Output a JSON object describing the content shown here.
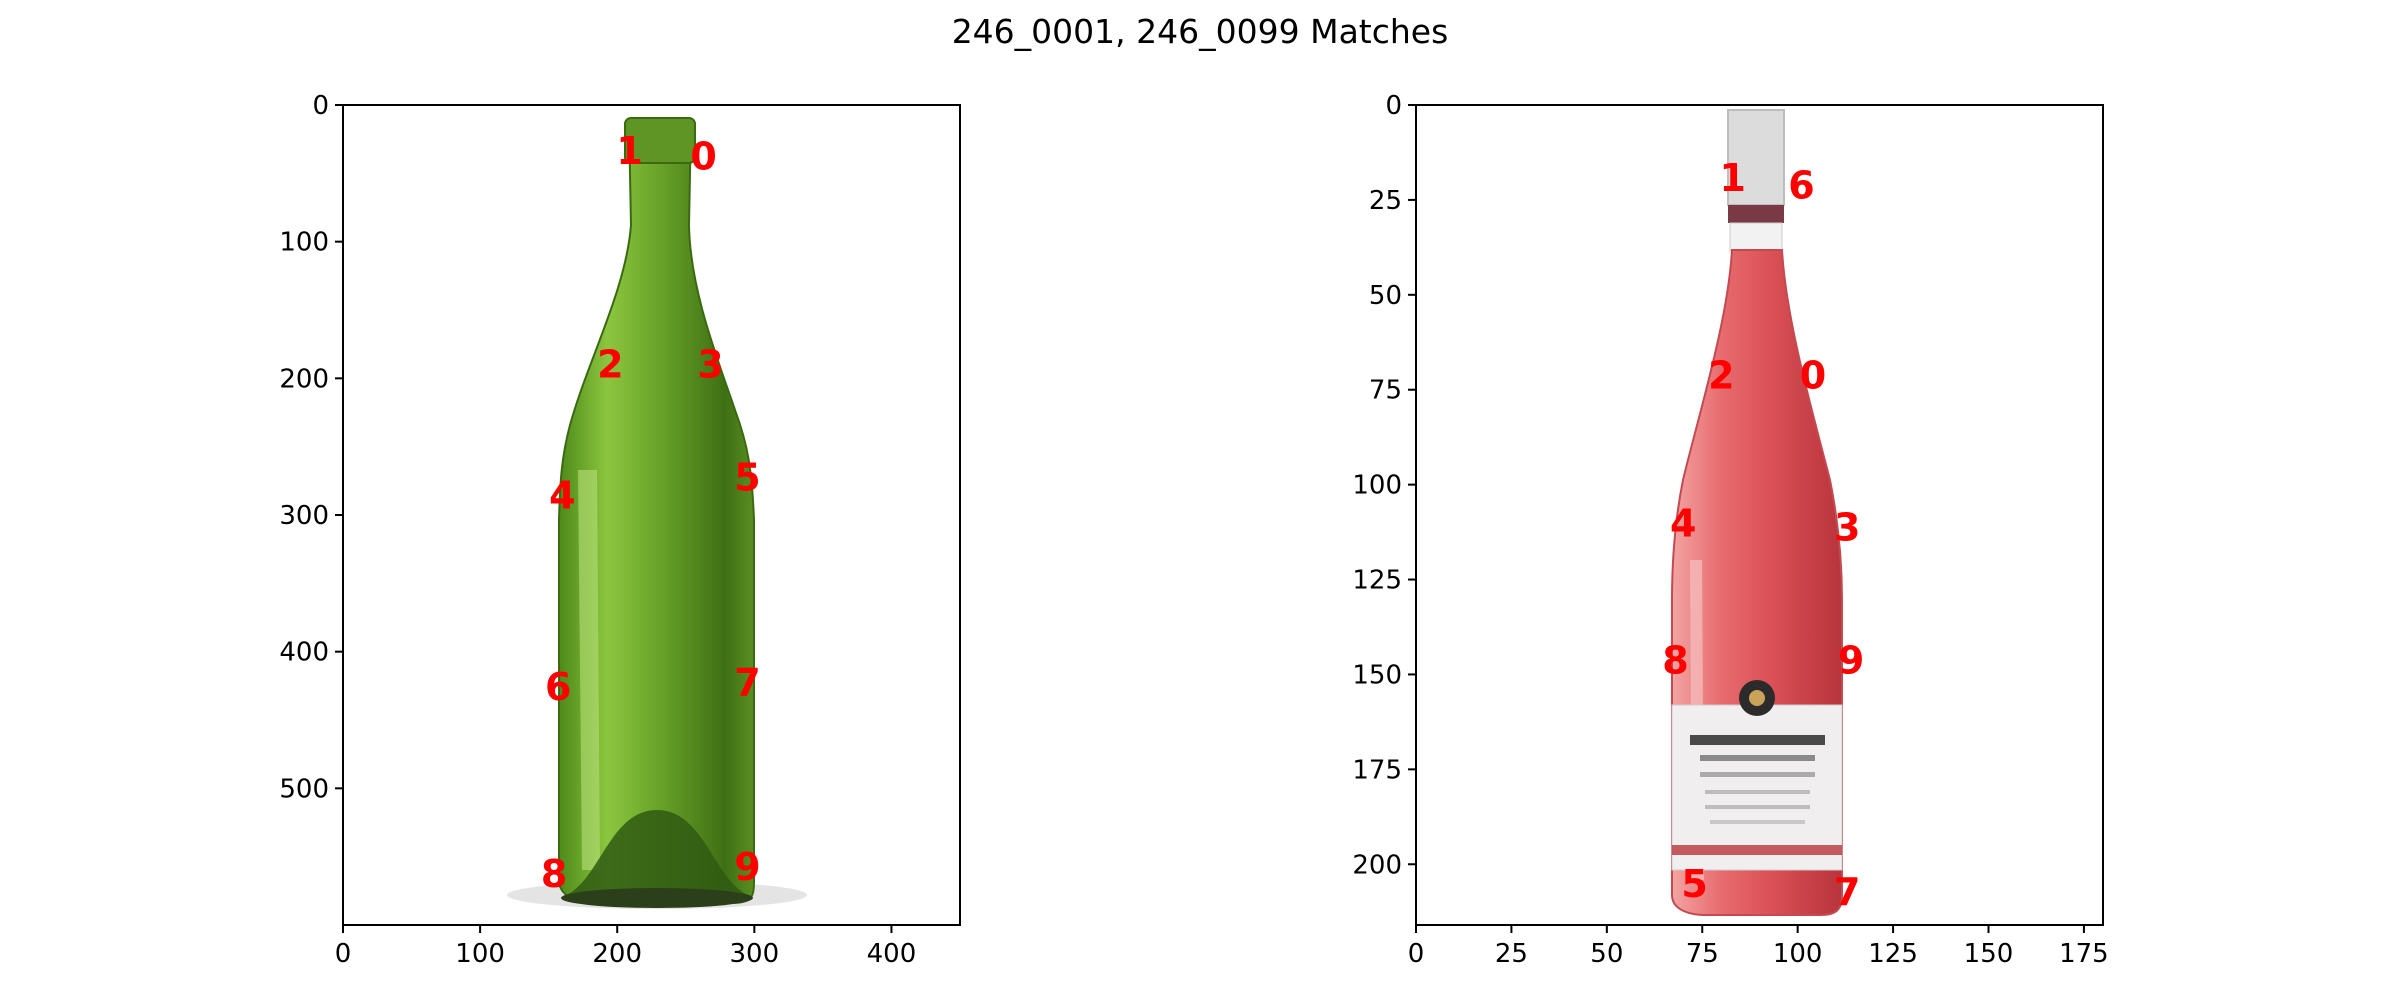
{
  "title": "246_0001, 246_0099 Matches",
  "colors": {
    "keypoint": "#ff0000",
    "green_glass": "#6aa52a",
    "green_glass_dark": "#3f6f14",
    "rose_wine": "#e76a6d",
    "rose_wine_dark": "#b8343c",
    "capsule": "#d9d9d9",
    "label": "#f0eeee"
  },
  "chart_data": [
    {
      "type": "image",
      "content": "green-wine-bottle",
      "xlim": [
        0,
        450
      ],
      "ylim": [
        600,
        0
      ],
      "xticks": [
        0,
        100,
        200,
        300,
        400
      ],
      "yticks": [
        0,
        100,
        200,
        300,
        400,
        500
      ],
      "keypoints": [
        {
          "label": "0",
          "x": 263,
          "y": 37
        },
        {
          "label": "1",
          "x": 209,
          "y": 33
        },
        {
          "label": "2",
          "x": 195,
          "y": 189
        },
        {
          "label": "3",
          "x": 268,
          "y": 189
        },
        {
          "label": "4",
          "x": 160,
          "y": 285
        },
        {
          "label": "5",
          "x": 295,
          "y": 272
        },
        {
          "label": "6",
          "x": 157,
          "y": 425
        },
        {
          "label": "7",
          "x": 295,
          "y": 422
        },
        {
          "label": "8",
          "x": 154,
          "y": 562
        },
        {
          "label": "9",
          "x": 295,
          "y": 557
        }
      ]
    },
    {
      "type": "image",
      "content": "rose-wine-bottle",
      "xlim": [
        0,
        180
      ],
      "ylim": [
        216,
        0
      ],
      "xticks": [
        0,
        25,
        50,
        75,
        100,
        125,
        150,
        175
      ],
      "yticks": [
        0,
        25,
        50,
        75,
        100,
        125,
        150,
        175,
        200
      ],
      "keypoints": [
        {
          "label": "0",
          "x": 104,
          "y": 71
        },
        {
          "label": "1",
          "x": 83,
          "y": 19
        },
        {
          "label": "2",
          "x": 80,
          "y": 71
        },
        {
          "label": "3",
          "x": 113,
          "y": 111
        },
        {
          "label": "4",
          "x": 70,
          "y": 110
        },
        {
          "label": "5",
          "x": 73,
          "y": 205
        },
        {
          "label": "6",
          "x": 101,
          "y": 21
        },
        {
          "label": "7",
          "x": 113,
          "y": 207
        },
        {
          "label": "8",
          "x": 68,
          "y": 146
        },
        {
          "label": "9",
          "x": 114,
          "y": 146
        }
      ]
    }
  ]
}
